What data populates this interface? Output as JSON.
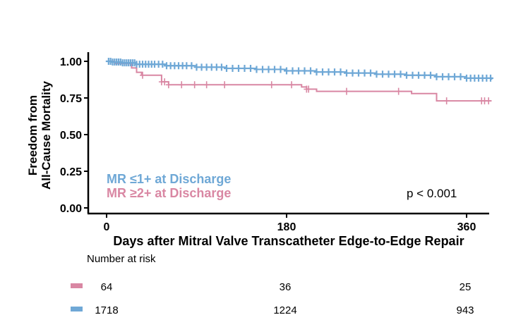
{
  "chart_data": {
    "type": "line",
    "subtype": "kaplan-meier",
    "ylabel_line1": "Freedom from",
    "ylabel_line2": "All-Cause Mortality",
    "xlabel": "Days after Mitral Valve Transcatheter Edge-to-Edge Repair",
    "xlim": [
      -5,
      385
    ],
    "ylim": [
      0,
      1.05
    ],
    "x_ticks": [
      0,
      180,
      360
    ],
    "x_tick_labels": [
      "0",
      "180",
      "360"
    ],
    "y_ticks": [
      0,
      0.25,
      0.5,
      0.75,
      1.0
    ],
    "y_tick_labels": [
      "0.00",
      "0.25",
      "0.50",
      "0.75",
      "1.00"
    ],
    "grid": false,
    "legend_placement": "bottom-left",
    "p_value": "p < 0.001",
    "series": [
      {
        "name": "MR ≤1+ at Discharge",
        "color": "#6fa8d6",
        "x": [
          0,
          5,
          15,
          30,
          60,
          90,
          120,
          150,
          180,
          210,
          240,
          270,
          300,
          330,
          360,
          385
        ],
        "y": [
          1.0,
          0.995,
          0.99,
          0.98,
          0.97,
          0.96,
          0.952,
          0.945,
          0.935,
          0.927,
          0.92,
          0.912,
          0.905,
          0.895,
          0.885,
          0.875
        ],
        "censor_x": [
          2,
          4,
          6,
          8,
          10,
          12,
          14,
          16,
          18,
          20,
          22,
          24,
          26,
          28,
          30,
          33,
          36,
          39,
          42,
          45,
          48,
          52,
          56,
          60,
          64,
          68,
          72,
          76,
          80,
          85,
          90,
          95,
          100,
          105,
          110,
          115,
          120,
          126,
          132,
          138,
          144,
          150,
          156,
          162,
          168,
          174,
          180,
          186,
          192,
          198,
          204,
          210,
          216,
          222,
          228,
          234,
          240,
          246,
          252,
          258,
          264,
          270,
          276,
          282,
          288,
          294,
          300,
          306,
          312,
          318,
          324,
          330,
          336,
          342,
          348,
          354,
          360,
          364,
          368,
          372,
          376,
          380,
          384
        ]
      },
      {
        "name": "MR ≥2+ at Discharge",
        "color": "#d987a3",
        "x": [
          0,
          8,
          25,
          30,
          35,
          55,
          62,
          185,
          195,
          200,
          210,
          295,
          305,
          330,
          385
        ],
        "y": [
          1.0,
          0.985,
          0.955,
          0.925,
          0.905,
          0.86,
          0.84,
          0.84,
          0.825,
          0.81,
          0.795,
          0.795,
          0.78,
          0.73,
          0.73
        ],
        "censor_x": [
          36,
          55,
          58,
          62,
          75,
          88,
          100,
          118,
          165,
          185,
          200,
          202,
          240,
          292,
          340,
          375,
          378,
          382
        ]
      }
    ],
    "risk_table": {
      "title": "Number at risk",
      "time_points": [
        0,
        180,
        360
      ],
      "rows": [
        {
          "color": "#d987a3",
          "values": [
            "64",
            "36",
            "25"
          ]
        },
        {
          "color": "#6fa8d6",
          "values": [
            "1718",
            "1224",
            "943"
          ]
        }
      ]
    }
  }
}
